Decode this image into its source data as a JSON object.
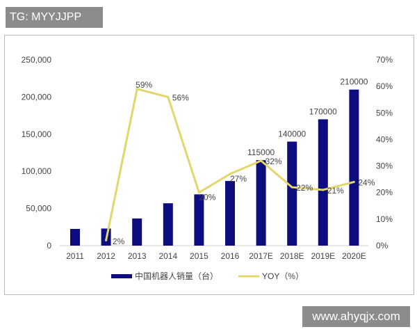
{
  "tag": "TG: MYYJJPP",
  "watermark": "www.ahyqjx.com",
  "chart_data": {
    "type": "bar+line",
    "categories": [
      "2011",
      "2012",
      "2013",
      "2014",
      "2015",
      "2016",
      "2017E",
      "2018E",
      "2019E",
      "2020E"
    ],
    "series": [
      {
        "name": "中国机器人销量（台）",
        "type": "bar",
        "axis": "left",
        "color": "#0d0d80",
        "values": [
          22500,
          23000,
          36500,
          57000,
          69000,
          87000,
          115000,
          140000,
          170000,
          210000
        ],
        "data_labels": [
          null,
          null,
          null,
          null,
          null,
          null,
          "115000",
          "140000",
          "170000",
          "210000"
        ]
      },
      {
        "name": "YOY（%）",
        "type": "line",
        "axis": "right",
        "color": "#e3d66b",
        "values": [
          null,
          2,
          59,
          56,
          20,
          27,
          32,
          22,
          21,
          24
        ],
        "data_labels": [
          null,
          "2%",
          "59%",
          "56%",
          "20%",
          "27%",
          "32%",
          "22%",
          "21%",
          "24%"
        ]
      }
    ],
    "left_axis": {
      "ylim": [
        0,
        250000
      ],
      "ticks": [
        "0",
        "50,000",
        "100,000",
        "150,000",
        "200,000",
        "250,000"
      ]
    },
    "right_axis": {
      "ylim": [
        0,
        70
      ],
      "ticks": [
        "0%",
        "10%",
        "20%",
        "30%",
        "40%",
        "50%",
        "60%",
        "70%"
      ]
    },
    "legend": "bottom",
    "grid": false
  }
}
